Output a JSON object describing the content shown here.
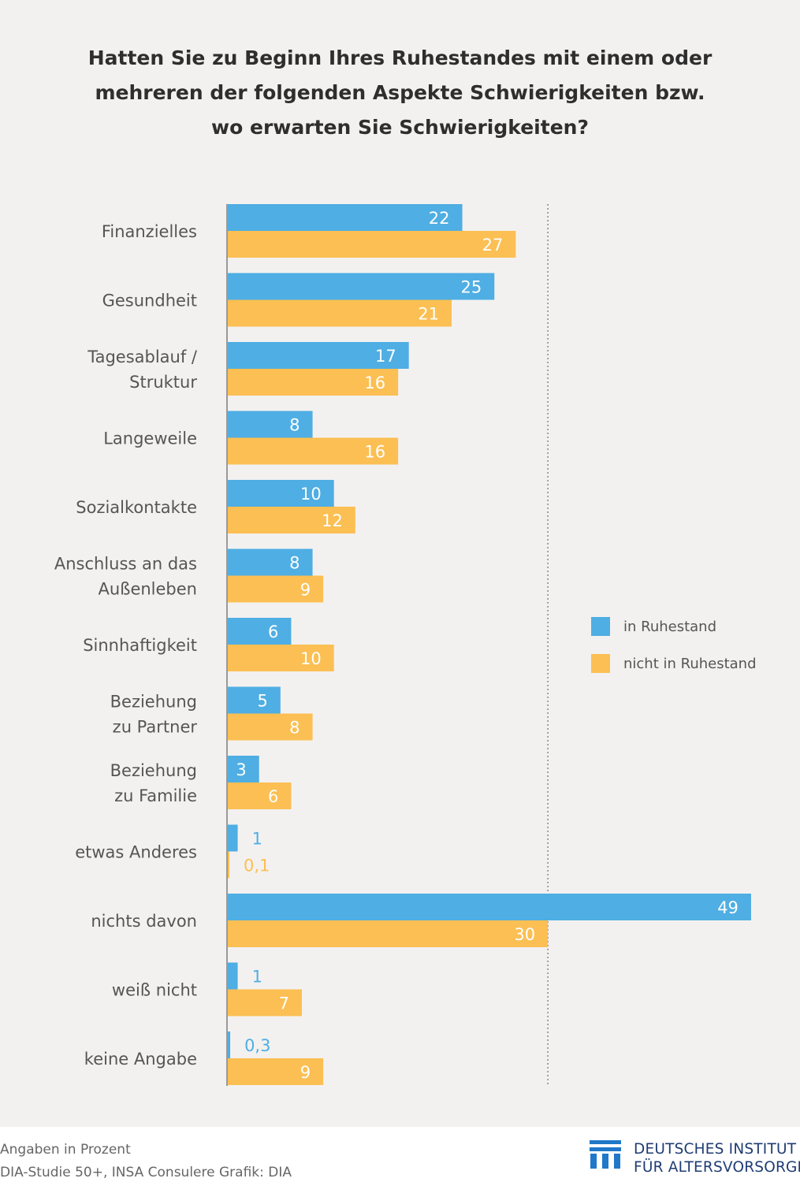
{
  "title_lines": [
    "Hatten Sie zu Beginn Ihres Ruhestandes mit einem oder",
    "mehreren der folgenden Aspekte Schwierigkeiten bzw.",
    "wo erwarten Sie Schwierigkeiten?"
  ],
  "chart_data": {
    "type": "bar",
    "orientation": "horizontal",
    "title": "Hatten Sie zu Beginn Ihres Ruhestandes mit einem oder mehreren der folgenden Aspekte Schwierigkeiten bzw. wo erwarten Sie Schwierigkeiten?",
    "categories": [
      [
        "Finanzielles"
      ],
      [
        "Gesundheit"
      ],
      [
        "Tagesablauf /",
        "Struktur"
      ],
      [
        "Langeweile"
      ],
      [
        "Sozialkontakte"
      ],
      [
        "Anschluss an das",
        "Außenleben"
      ],
      [
        "Sinnhaftigkeit"
      ],
      [
        "Beziehung",
        "zu Partner"
      ],
      [
        "Beziehung",
        "zu Familie"
      ],
      [
        "etwas Anderes"
      ],
      [
        "nichts davon"
      ],
      [
        "weiß nicht"
      ],
      [
        "keine Angabe"
      ]
    ],
    "series": [
      {
        "name": "in Ruhestand",
        "color": "#4faee3",
        "values": [
          22,
          25,
          17,
          8,
          10,
          8,
          6,
          5,
          3,
          1,
          49,
          1,
          0.3
        ],
        "labels": [
          "22",
          "25",
          "17",
          "8",
          "10",
          "8",
          "6",
          "5",
          "3",
          "1",
          "49",
          "1",
          "0,3"
        ]
      },
      {
        "name": "nicht in Ruhestand",
        "color": "#fbbf53",
        "values": [
          27,
          21,
          16,
          16,
          12,
          9,
          10,
          8,
          6,
          0.1,
          30,
          7,
          9
        ],
        "labels": [
          "27",
          "21",
          "16",
          "16",
          "12",
          "9",
          "10",
          "8",
          "6",
          "0,1",
          "30",
          "7",
          "9"
        ]
      }
    ],
    "xlim": [
      0,
      49
    ],
    "reference_line": 30,
    "grid": false,
    "legend_position": "right"
  },
  "footer": {
    "note": "Angaben in Prozent",
    "source": "DIA-Studie 50+, INSA Consulere  Grafik: DIA",
    "logo_line1": "DEUTSCHES INSTITUT",
    "logo_line2": "FÜR ALTERSVORSORGE"
  },
  "colors": {
    "background": "#f3f1f0",
    "logo_blue": "#1f78c8",
    "logo_text": "#1f3c73"
  }
}
